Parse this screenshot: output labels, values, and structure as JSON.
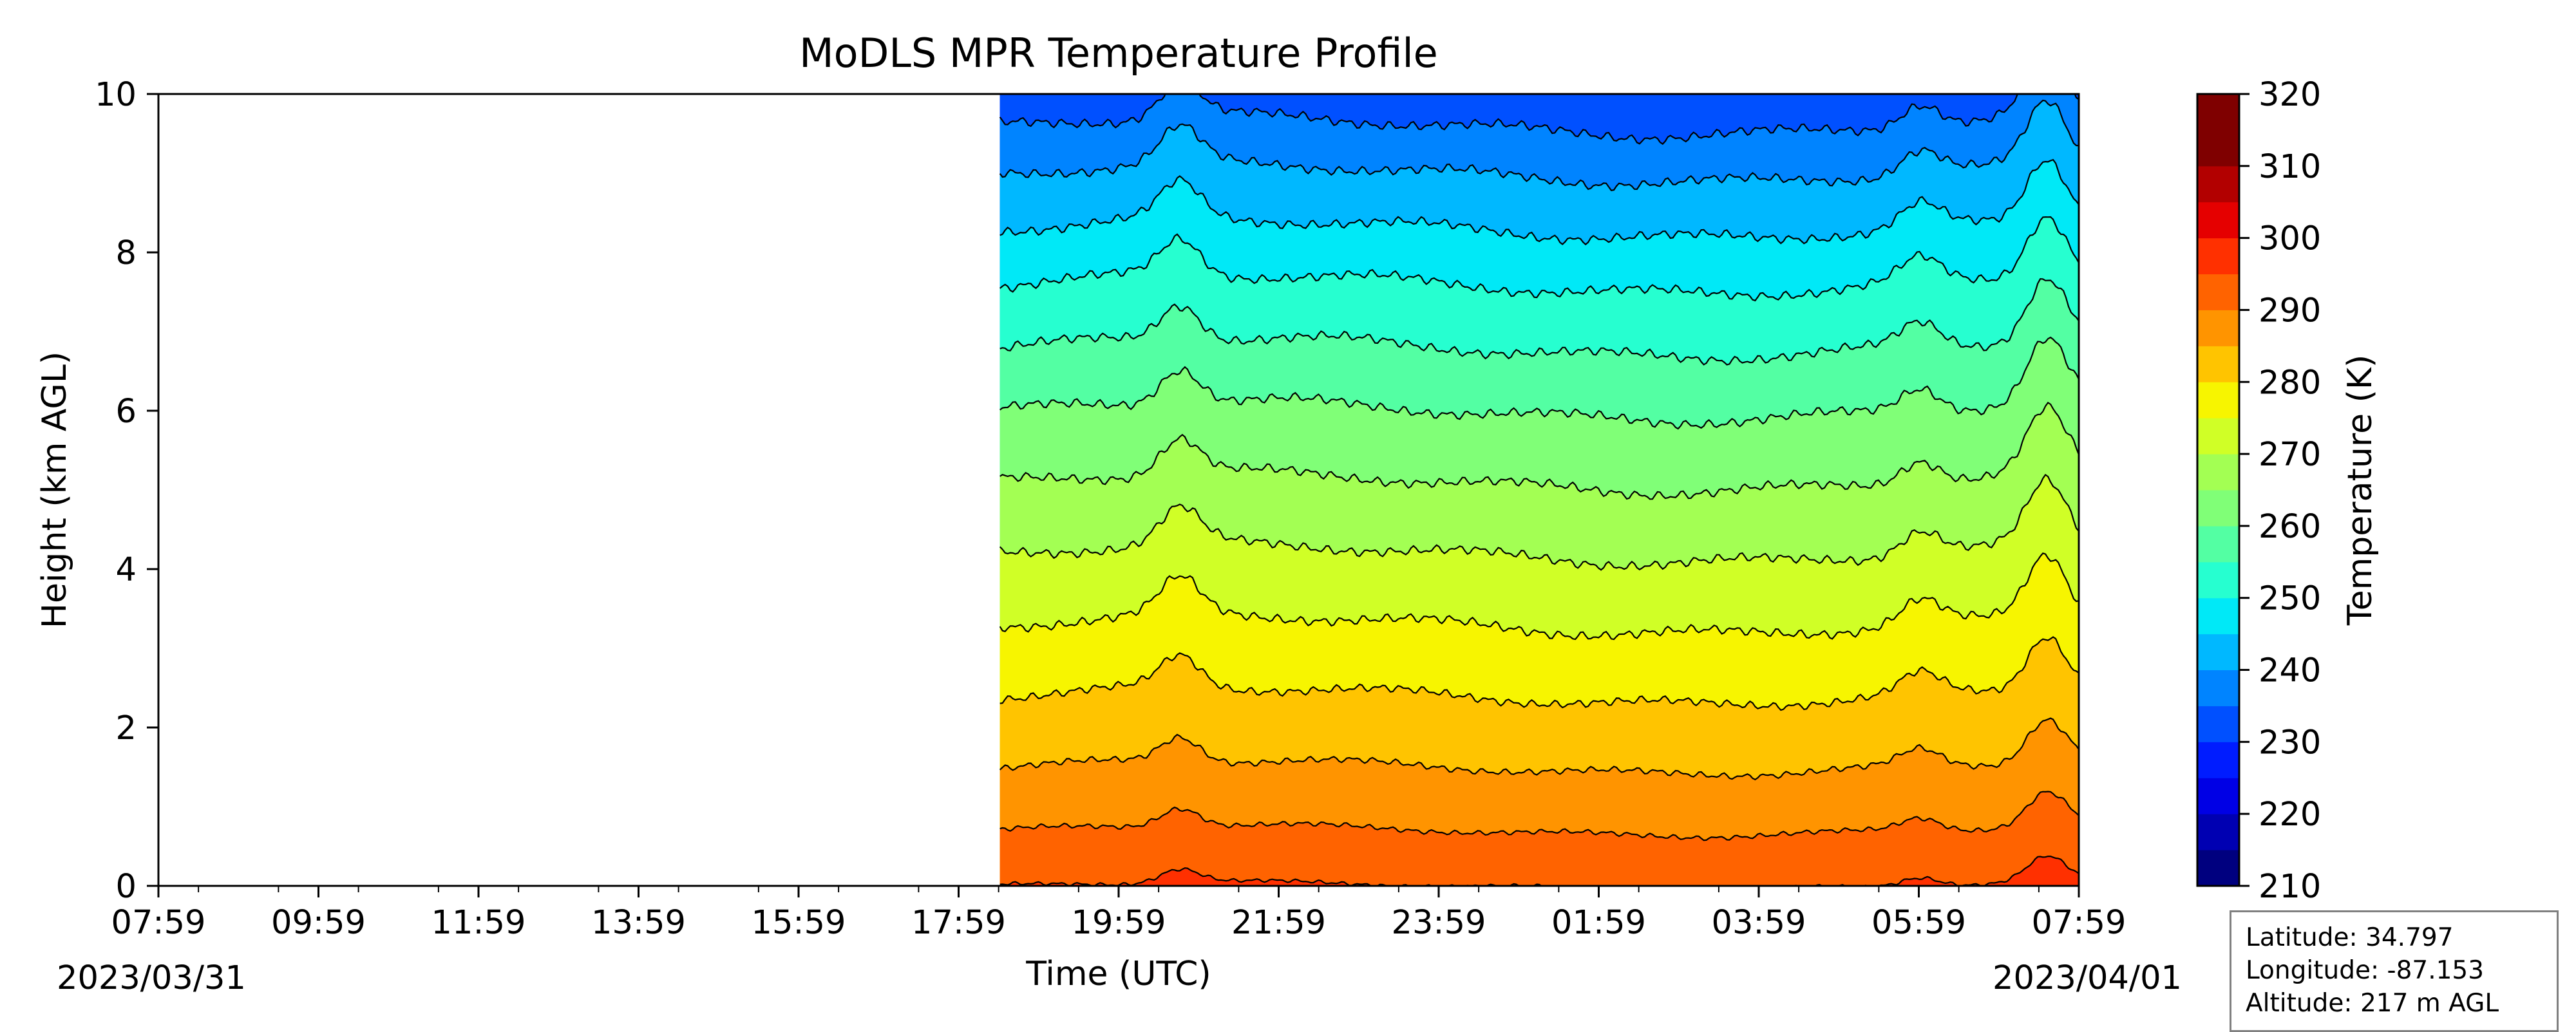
{
  "chart_data": {
    "type": "contourf",
    "title": "MoDLS MPR Temperature Profile",
    "xlabel": "Time (UTC)",
    "ylabel": "Height (km AGL)",
    "x_tick_labels": [
      "07:59",
      "09:59",
      "11:59",
      "13:59",
      "15:59",
      "17:59",
      "19:59",
      "21:59",
      "23:59",
      "01:59",
      "03:59",
      "05:59",
      "07:59"
    ],
    "x_date_start": "2023/03/31",
    "x_date_end": "2023/04/01",
    "x_range": [
      "2023-03-31 07:59",
      "2023-04-01 07:59"
    ],
    "data_start_time": "2023-03-31 18:30",
    "y_ticks": [
      0,
      2,
      4,
      6,
      8,
      10
    ],
    "ylim": [
      0,
      10
    ],
    "colorbar": {
      "label": "Temperature (K)",
      "ticks": [
        210,
        220,
        230,
        240,
        250,
        260,
        270,
        280,
        290,
        300,
        310,
        320
      ],
      "range": [
        210,
        320
      ],
      "levels": [
        210,
        215,
        220,
        225,
        230,
        235,
        240,
        245,
        250,
        255,
        260,
        265,
        270,
        275,
        280,
        285,
        290,
        295,
        300,
        305,
        310,
        315,
        320
      ],
      "colors": [
        "#00007f",
        "#0000b2",
        "#0000e5",
        "#001cff",
        "#0050ff",
        "#0084ff",
        "#00b8ff",
        "#00e9f7",
        "#26ffd0",
        "#53ffa3",
        "#80ff77",
        "#a3ff53",
        "#d0ff26",
        "#f7f500",
        "#ffc400",
        "#ff9400",
        "#ff6300",
        "#ff3000",
        "#e50000",
        "#b20000",
        "#7f0000",
        "#7f0000"
      ],
      "colormap": "jet"
    },
    "temperature_profile": {
      "height_km": [
        0,
        0.7,
        1.5,
        2.4,
        3.3,
        4.2,
        5.1,
        6.0,
        6.8,
        7.6,
        8.3,
        9.0,
        9.6,
        10.0
      ],
      "temperature_k": [
        293,
        290,
        285,
        280,
        275,
        270,
        265,
        260,
        255,
        250,
        245,
        240,
        235,
        232
      ]
    },
    "contour_interval_k": 5,
    "warm_peaks": [
      {
        "time": "2023-03-31 20:45",
        "strength_km": 0.45
      },
      {
        "time": "2023-04-01 06:00",
        "strength_km": 0.3
      },
      {
        "time": "2023-04-01 07:35",
        "strength_km": 0.8
      }
    ],
    "grid": false,
    "legend": "colorbar-right"
  },
  "station": {
    "latitude": "Latitude: 34.797",
    "longitude": "Longitude: -87.153",
    "altitude": "Altitude: 217 m AGL"
  }
}
